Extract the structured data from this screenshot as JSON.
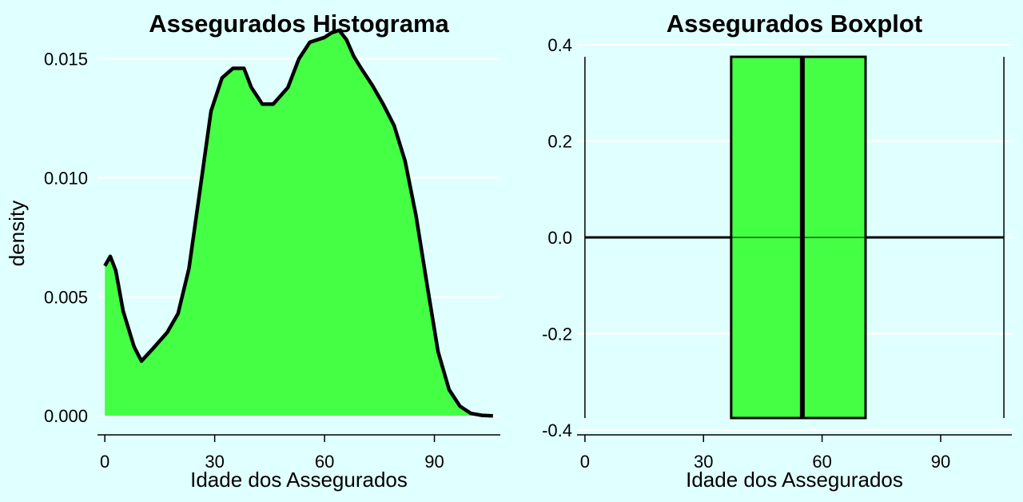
{
  "chart_data": [
    {
      "type": "area",
      "title": "Assegurados Histograma",
      "xlabel": "Idade dos Assegurados",
      "ylabel": "density",
      "xlim": [
        -2,
        108
      ],
      "ylim": [
        -0.0008,
        0.0168
      ],
      "x_ticks": [
        0,
        30,
        60,
        90
      ],
      "x_tick_labels": [
        "0",
        "30",
        "60",
        "90"
      ],
      "y_ticks": [
        0,
        0.005,
        0.01,
        0.015
      ],
      "y_tick_labels": [
        "0.000",
        "0.005",
        "0.010",
        "0.015"
      ],
      "grid": "horizontal",
      "fill_color": "#44ff44",
      "line_color": "#000000",
      "x": [
        0,
        1.5,
        3,
        5,
        8,
        10,
        13,
        17,
        20,
        23,
        26,
        29,
        32,
        35,
        38,
        40,
        43,
        46,
        50,
        53,
        56,
        58,
        60,
        62,
        64,
        66,
        68,
        70,
        73,
        76,
        79,
        82,
        85,
        88,
        91,
        94,
        97,
        100,
        103,
        106
      ],
      "y": [
        0.0063,
        0.0067,
        0.0061,
        0.0044,
        0.0029,
        0.0023,
        0.0028,
        0.0035,
        0.0043,
        0.0062,
        0.0095,
        0.0128,
        0.0142,
        0.0146,
        0.0146,
        0.0138,
        0.0131,
        0.0131,
        0.0138,
        0.015,
        0.0157,
        0.0158,
        0.0159,
        0.0161,
        0.0162,
        0.0158,
        0.0151,
        0.0146,
        0.0139,
        0.0131,
        0.0122,
        0.0107,
        0.0084,
        0.0055,
        0.0027,
        0.0011,
        0.0004,
        0.0001,
        2e-05,
        0
      ]
    },
    {
      "type": "boxplot",
      "title": "Assegurados Boxplot",
      "xlabel": "Idade dos Assegurados",
      "xlim": [
        -2,
        108
      ],
      "ylim": [
        -0.4,
        0.4
      ],
      "x_ticks": [
        0,
        30,
        60,
        90
      ],
      "x_tick_labels": [
        "0",
        "30",
        "60",
        "90"
      ],
      "y_ticks": [
        -0.4,
        -0.2,
        0,
        0.2,
        0.4
      ],
      "y_tick_labels": [
        "-0.4",
        "-0.2",
        "0.0",
        "0.2",
        "0.4"
      ],
      "grid": "horizontal",
      "fill_color": "#44ff44",
      "whisker_low": 0,
      "q1": 37,
      "median": 55,
      "q3": 71,
      "whisker_high": 106,
      "box_y": [
        -0.375,
        0.375
      ]
    }
  ]
}
